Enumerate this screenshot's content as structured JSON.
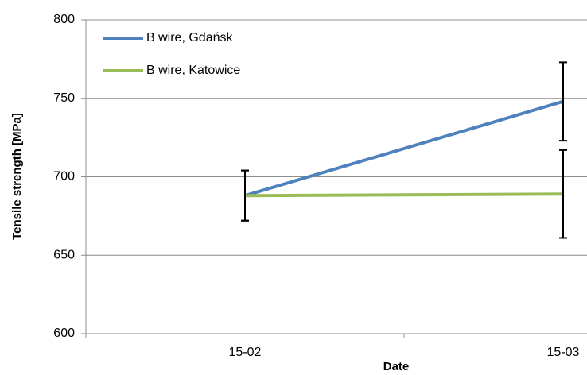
{
  "chart_data": {
    "type": "line",
    "categories": [
      "15-02",
      "15-03"
    ],
    "series": [
      {
        "name": "B wire, Gdańsk",
        "color": "#4f81bd",
        "values": [
          688,
          748
        ],
        "errors": [
          16,
          25
        ]
      },
      {
        "name": "B wire, Katowice",
        "color": "#9bbb59",
        "values": [
          688,
          689
        ],
        "errors": [
          16,
          28
        ]
      }
    ],
    "x_label": "Date",
    "y_label": "Tensile strength [MPa]",
    "ylim": [
      600,
      800
    ],
    "yticks": [
      600,
      650,
      700,
      750,
      800
    ],
    "grid": true,
    "legend": "upper left"
  }
}
